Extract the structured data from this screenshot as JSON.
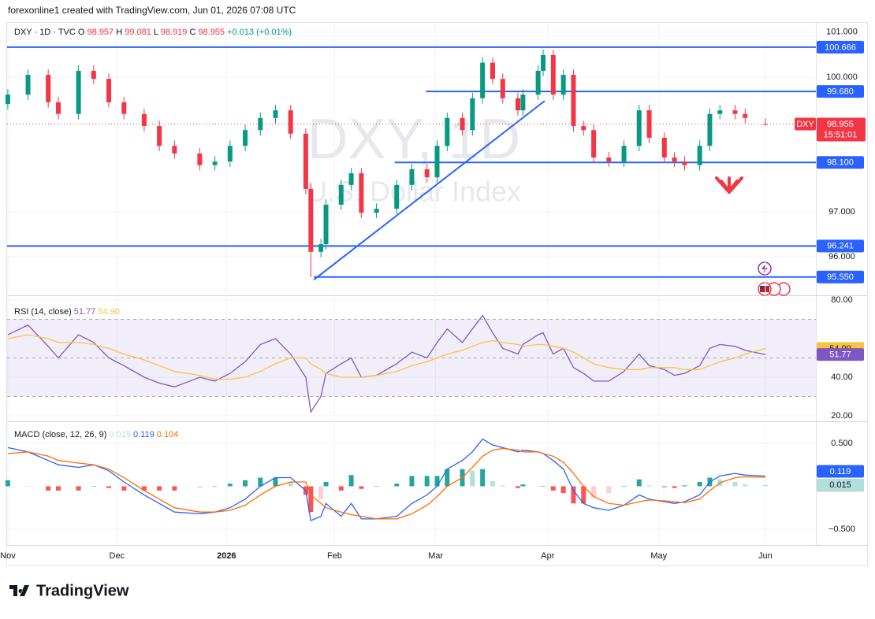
{
  "header": {
    "credit": "forexonline1 created with TradingView.com, Jun 01, 2026 07:08 UTC"
  },
  "footer": {
    "logo": "TradingView"
  },
  "chart_data": [
    {
      "type": "candlestick",
      "symbol": "DXY · 1D · TVC",
      "ohlc_legend": [
        {
          "label": "O",
          "value": "98.957"
        },
        {
          "label": "H",
          "value": "99.081"
        },
        {
          "label": "L",
          "value": "98.919"
        },
        {
          "label": "C",
          "value": "98.955"
        }
      ],
      "change": "+0.013 (+0.01%)",
      "watermark": "DXY, 1D",
      "watermark_subtitle": "U.S. Dollar Index",
      "up_color": "#089981",
      "down_color": "#f23645",
      "level_color": "#2962ff",
      "xlim": [
        -0.3,
        160
      ],
      "ylim": [
        95.23,
        101.19
      ],
      "yticks": [
        {
          "value": 101,
          "label": "101.000"
        },
        {
          "value": 100,
          "label": "100.000"
        },
        {
          "value": 97,
          "label": "97.000"
        },
        {
          "value": 96,
          "label": "96.000"
        }
      ],
      "xticks": [
        {
          "value": 0,
          "label": "Nov"
        },
        {
          "value": 21.6,
          "label": "Dec"
        },
        {
          "value": 43.3,
          "label": "2026"
        },
        {
          "value": 64.7,
          "label": "Feb"
        },
        {
          "value": 84.7,
          "label": "Mar"
        },
        {
          "value": 106.9,
          "label": "Apr"
        },
        {
          "value": 128.9,
          "label": "May"
        },
        {
          "value": 150,
          "label": "Jun"
        }
      ],
      "x": [
        0,
        4,
        8,
        10,
        14,
        17,
        20,
        23,
        27,
        30,
        33,
        38,
        41,
        44,
        47,
        50,
        53,
        56,
        59,
        60,
        62,
        63,
        66,
        68,
        70,
        73,
        77,
        80,
        83,
        85,
        87,
        90,
        92,
        94,
        96,
        98,
        101,
        102,
        105,
        106,
        108,
        110,
        112,
        114,
        116,
        119,
        122,
        125,
        127,
        130,
        132,
        134,
        137,
        139,
        141,
        144,
        146,
        150
      ],
      "open": [
        99.4,
        99.61,
        100.05,
        99.44,
        99.18,
        100.14,
        99.96,
        99.44,
        99.18,
        98.91,
        98.47,
        98.3,
        98.04,
        98.12,
        98.47,
        98.82,
        99.09,
        99.26,
        98.74,
        97.51,
        96.11,
        96.28,
        97.16,
        97.6,
        97.86,
        96.98,
        97.07,
        97.6,
        97.95,
        97.77,
        98.47,
        99.09,
        98.82,
        99.53,
        100.32,
        99.96,
        99.53,
        99.26,
        99.61,
        100.14,
        100.49,
        99.61,
        100.05,
        98.91,
        98.82,
        98.21,
        98.12,
        98.47,
        99.26,
        98.65,
        98.21,
        98.12,
        98.04,
        98.47,
        99.18,
        99.26,
        99.18,
        98.957
      ],
      "high": [
        99.73,
        100.17,
        100.17,
        99.56,
        100.26,
        100.26,
        100.08,
        99.56,
        99.3,
        99.03,
        98.59,
        98.42,
        98.24,
        98.59,
        98.94,
        99.21,
        99.38,
        99.38,
        98.86,
        97.63,
        96.4,
        97.28,
        97.72,
        97.98,
        97.98,
        97.19,
        97.72,
        98.07,
        98.07,
        98.59,
        99.21,
        99.21,
        99.65,
        100.44,
        100.44,
        100.08,
        99.65,
        99.73,
        100.26,
        100.61,
        100.61,
        100.17,
        100.17,
        99.03,
        98.94,
        98.33,
        98.59,
        99.38,
        99.38,
        98.77,
        98.33,
        98.24,
        98.59,
        99.3,
        99.38,
        99.38,
        99.3,
        99.081
      ],
      "low": [
        99.28,
        99.49,
        99.32,
        99.06,
        99.06,
        99.84,
        99.32,
        99.06,
        98.79,
        98.35,
        98.18,
        97.92,
        97.92,
        98.0,
        98.35,
        98.7,
        98.97,
        98.62,
        97.39,
        95.55,
        95.99,
        96.16,
        97.04,
        97.48,
        96.86,
        96.86,
        96.95,
        97.48,
        97.65,
        97.65,
        98.35,
        98.7,
        98.7,
        99.41,
        99.84,
        99.41,
        99.14,
        99.14,
        99.49,
        100.02,
        99.49,
        99.49,
        98.79,
        98.7,
        98.09,
        98.0,
        98.0,
        98.35,
        98.53,
        98.09,
        98.0,
        97.92,
        97.92,
        98.35,
        99.06,
        99.06,
        98.97,
        98.919
      ],
      "close": [
        99.61,
        100.05,
        99.44,
        99.18,
        100.14,
        99.96,
        99.44,
        99.18,
        98.91,
        98.47,
        98.3,
        98.04,
        98.12,
        98.47,
        98.82,
        99.09,
        99.26,
        98.74,
        97.51,
        96.11,
        96.28,
        97.16,
        97.6,
        97.86,
        96.98,
        97.07,
        97.6,
        97.95,
        97.77,
        98.47,
        99.09,
        98.82,
        99.53,
        100.32,
        99.96,
        99.53,
        99.26,
        99.61,
        100.14,
        100.49,
        99.61,
        100.05,
        98.91,
        98.82,
        98.21,
        98.12,
        98.47,
        99.26,
        98.65,
        98.21,
        98.12,
        98.04,
        98.47,
        99.18,
        99.26,
        99.18,
        99.09,
        98.955
      ],
      "levels": [
        {
          "value": 100.666,
          "label": "100.666"
        },
        {
          "value": 99.68,
          "label": "99.680",
          "from": 82.8
        },
        {
          "value": 98.1,
          "label": "98.100",
          "from": 76.6
        },
        {
          "value": 96.241,
          "label": "96.241"
        },
        {
          "value": 95.55,
          "label": "95.550",
          "from": 60.6
        }
      ],
      "trendline": {
        "x": [
          60.6,
          106.3
        ],
        "y": [
          95.49,
          99.47
        ]
      },
      "last_price": {
        "name": "DXY",
        "value": 98.955,
        "label": "98.955",
        "countdown": "15:51:01"
      }
    },
    {
      "type": "rsi",
      "title": "RSI (14, close)",
      "ylim": [
        19.2,
        80.4
      ],
      "yticks": [
        {
          "value": 80,
          "label": "80.00"
        },
        {
          "value": 40,
          "label": "40.00"
        },
        {
          "value": 20,
          "label": "20.00"
        }
      ],
      "band": [
        30,
        70
      ],
      "midline": 50,
      "band_color": "#7e57c2",
      "series": [
        {
          "color": "#7e57c2",
          "last_label": "51.77",
          "values": [
            62,
            67,
            56,
            50,
            62,
            58,
            50,
            46,
            40,
            37,
            35,
            40,
            38,
            42,
            48,
            57,
            60,
            52,
            40,
            22,
            30,
            42,
            47,
            50,
            40,
            41,
            47,
            53,
            50,
            58,
            65,
            58,
            65,
            72,
            63,
            55,
            52,
            57,
            62,
            63,
            52,
            55,
            45,
            42,
            38,
            38,
            43,
            52,
            46,
            44,
            41,
            42,
            46,
            55,
            57,
            56,
            54,
            51.77
          ]
        },
        {
          "color": "#f5c542",
          "last_label": "54.90",
          "values": [
            60,
            62,
            60,
            58,
            58,
            57,
            55,
            52,
            49,
            46,
            43,
            41,
            39,
            39,
            40,
            43,
            47,
            50,
            50,
            47,
            44,
            42,
            40,
            40,
            40,
            41,
            43,
            46,
            48,
            50,
            52,
            54,
            56,
            58,
            59,
            58,
            57,
            56,
            57,
            57,
            56,
            55,
            53,
            50,
            47,
            45,
            44,
            44,
            45,
            45,
            45,
            44,
            44,
            46,
            48,
            50,
            52,
            54.9
          ]
        }
      ]
    },
    {
      "type": "macd",
      "title": "MACD (close, 12, 26, 9)",
      "ylim": [
        -0.665,
        0.71
      ],
      "yticks": [
        {
          "value": 0.5,
          "label": "0.500"
        },
        {
          "value": -0.5,
          "label": "−0.500"
        }
      ],
      "histogram": {
        "last_label": "0.015",
        "colors": [
          "#26a69a",
          "#b2dfdb",
          "#ff5252",
          "#ffcdd2"
        ],
        "values": [
          0.07,
          0.0,
          -0.05,
          -0.05,
          -0.05,
          0.0,
          -0.02,
          -0.05,
          -0.05,
          -0.05,
          -0.05,
          -0.02,
          0.0,
          0.03,
          0.07,
          0.1,
          0.1,
          0.05,
          -0.1,
          -0.3,
          -0.15,
          0.05,
          -0.05,
          0.13,
          -0.03,
          0.0,
          0.03,
          0.12,
          0.12,
          0.12,
          0.2,
          0.2,
          0.18,
          0.2,
          0.06,
          0.01,
          -0.02,
          0.02,
          0.0,
          0.0,
          -0.05,
          -0.08,
          -0.2,
          -0.2,
          -0.13,
          -0.08,
          0.0,
          0.08,
          0.01,
          -0.01,
          -0.02,
          0.01,
          0.05,
          0.1,
          0.08,
          0.05,
          0.02,
          0.015
        ]
      },
      "series": [
        {
          "color": "#2962ff",
          "last_label": "0.119",
          "values": [
            0.45,
            0.4,
            0.3,
            0.25,
            0.22,
            0.25,
            0.18,
            0.05,
            -0.1,
            -0.2,
            -0.3,
            -0.32,
            -0.3,
            -0.25,
            -0.15,
            0.0,
            0.1,
            0.1,
            -0.05,
            -0.4,
            -0.35,
            -0.2,
            -0.35,
            -0.2,
            -0.38,
            -0.38,
            -0.35,
            -0.2,
            -0.1,
            0.0,
            0.2,
            0.3,
            0.4,
            0.55,
            0.48,
            0.45,
            0.4,
            0.42,
            0.4,
            0.38,
            0.3,
            0.2,
            -0.05,
            -0.2,
            -0.25,
            -0.28,
            -0.22,
            -0.1,
            -0.15,
            -0.18,
            -0.2,
            -0.18,
            -0.1,
            0.05,
            0.12,
            0.15,
            0.13,
            0.119
          ]
        },
        {
          "color": "#ff6d00",
          "last_label": "0.104",
          "values": [
            0.38,
            0.4,
            0.35,
            0.3,
            0.27,
            0.25,
            0.2,
            0.1,
            -0.05,
            -0.15,
            -0.25,
            -0.3,
            -0.3,
            -0.28,
            -0.22,
            -0.1,
            0.0,
            0.05,
            0.05,
            -0.1,
            -0.2,
            -0.25,
            -0.3,
            -0.33,
            -0.35,
            -0.38,
            -0.38,
            -0.32,
            -0.22,
            -0.12,
            0.0,
            0.1,
            0.22,
            0.35,
            0.42,
            0.44,
            0.42,
            0.4,
            0.4,
            0.38,
            0.35,
            0.28,
            0.15,
            0.0,
            -0.12,
            -0.2,
            -0.22,
            -0.18,
            -0.16,
            -0.17,
            -0.18,
            -0.19,
            -0.15,
            -0.05,
            0.04,
            0.1,
            0.11,
            0.104
          ]
        }
      ]
    }
  ]
}
